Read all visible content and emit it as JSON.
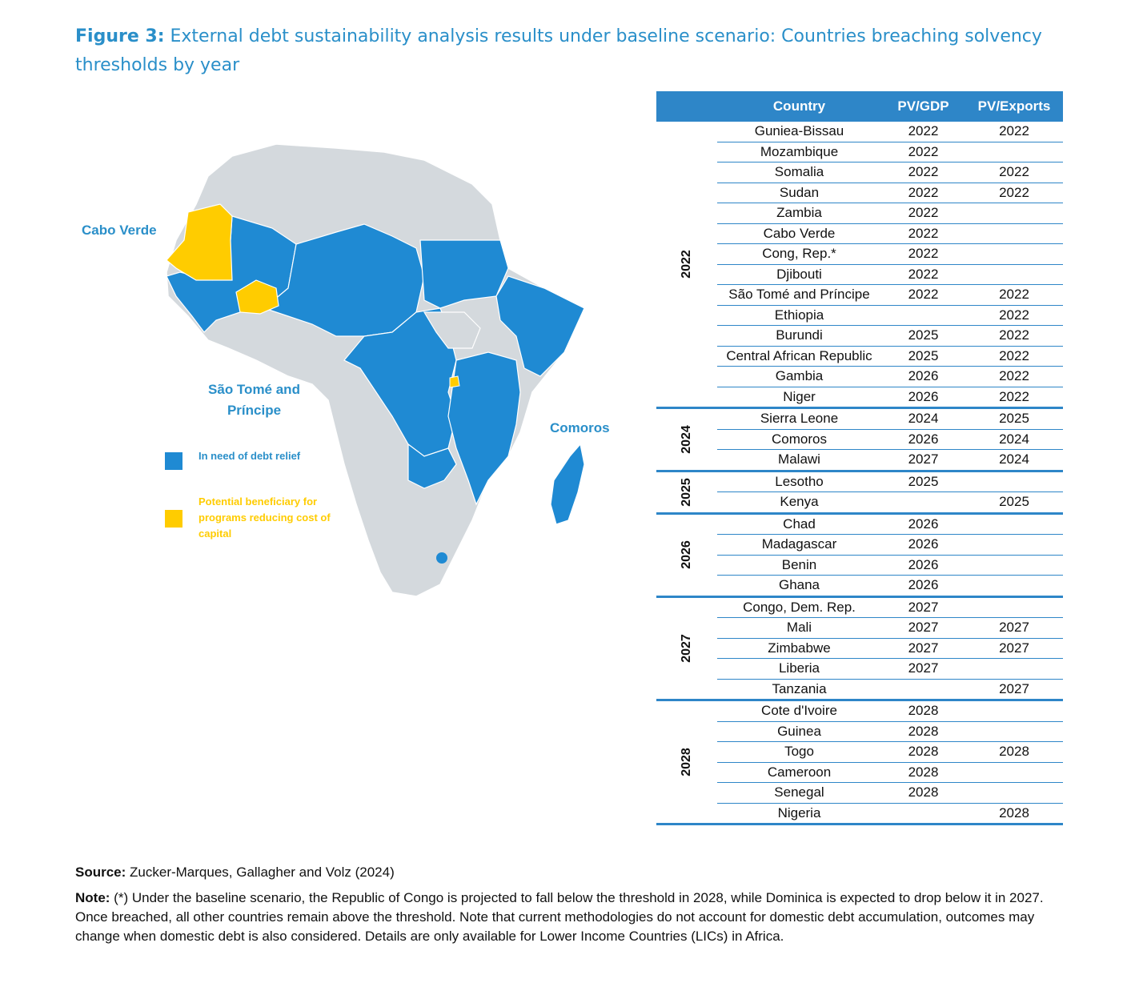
{
  "figure": {
    "label": "Figure 3:",
    "title": " External debt sustainability analysis results under baseline scenario: Countries breaching solvency thresholds by year"
  },
  "map": {
    "labels": {
      "cabo_verde": "Cabo Verde",
      "sao_tome_line1": "São Tomé and",
      "sao_tome_line2": "Príncipe",
      "comoros": "Comoros"
    },
    "legend": {
      "debt_relief": "In need of debt relief",
      "beneficiary": "Potential beneficiary for programs reducing cost of capital"
    },
    "colors": {
      "debt_relief": "#1f8ad3",
      "beneficiary": "#ffcc00",
      "other": "#d4d9dd"
    }
  },
  "table": {
    "headers": {
      "country": "Country",
      "pv_gdp": "PV/GDP",
      "pv_exports": "PV/Exports"
    },
    "groups": [
      {
        "year": "2022",
        "rows": [
          {
            "country": "Guniea-Bissau",
            "pv_gdp": "2022",
            "pv_exports": "2022"
          },
          {
            "country": "Mozambique",
            "pv_gdp": "2022",
            "pv_exports": ""
          },
          {
            "country": "Somalia",
            "pv_gdp": "2022",
            "pv_exports": "2022"
          },
          {
            "country": "Sudan",
            "pv_gdp": "2022",
            "pv_exports": "2022"
          },
          {
            "country": "Zambia",
            "pv_gdp": "2022",
            "pv_exports": ""
          },
          {
            "country": "Cabo Verde",
            "pv_gdp": "2022",
            "pv_exports": ""
          },
          {
            "country": "Cong, Rep.*",
            "pv_gdp": "2022",
            "pv_exports": ""
          },
          {
            "country": "Djibouti",
            "pv_gdp": "2022",
            "pv_exports": ""
          },
          {
            "country": "São Tomé and Príncipe",
            "pv_gdp": "2022",
            "pv_exports": "2022"
          },
          {
            "country": "Ethiopia",
            "pv_gdp": "",
            "pv_exports": "2022"
          },
          {
            "country": "Burundi",
            "pv_gdp": "2025",
            "pv_exports": "2022"
          },
          {
            "country": "Central African Republic",
            "pv_gdp": "2025",
            "pv_exports": "2022"
          },
          {
            "country": "Gambia",
            "pv_gdp": "2026",
            "pv_exports": "2022"
          },
          {
            "country": "Niger",
            "pv_gdp": "2026",
            "pv_exports": "2022"
          }
        ]
      },
      {
        "year": "2024",
        "rows": [
          {
            "country": "Sierra Leone",
            "pv_gdp": "2024",
            "pv_exports": "2025"
          },
          {
            "country": "Comoros",
            "pv_gdp": "2026",
            "pv_exports": "2024"
          },
          {
            "country": "Malawi",
            "pv_gdp": "2027",
            "pv_exports": "2024"
          }
        ]
      },
      {
        "year": "2025",
        "rows": [
          {
            "country": "Lesotho",
            "pv_gdp": "2025",
            "pv_exports": ""
          },
          {
            "country": "Kenya",
            "pv_gdp": "",
            "pv_exports": "2025"
          }
        ]
      },
      {
        "year": "2026",
        "rows": [
          {
            "country": "Chad",
            "pv_gdp": "2026",
            "pv_exports": ""
          },
          {
            "country": "Madagascar",
            "pv_gdp": "2026",
            "pv_exports": ""
          },
          {
            "country": "Benin",
            "pv_gdp": "2026",
            "pv_exports": ""
          },
          {
            "country": "Ghana",
            "pv_gdp": "2026",
            "pv_exports": ""
          }
        ]
      },
      {
        "year": "2027",
        "rows": [
          {
            "country": "Congo, Dem. Rep.",
            "pv_gdp": "2027",
            "pv_exports": ""
          },
          {
            "country": "Mali",
            "pv_gdp": "2027",
            "pv_exports": "2027"
          },
          {
            "country": "Zimbabwe",
            "pv_gdp": "2027",
            "pv_exports": "2027"
          },
          {
            "country": "Liberia",
            "pv_gdp": "2027",
            "pv_exports": ""
          },
          {
            "country": "Tanzania",
            "pv_gdp": "",
            "pv_exports": "2027"
          }
        ]
      },
      {
        "year": "2028",
        "rows": [
          {
            "country": "Cote d'Ivoire",
            "pv_gdp": "2028",
            "pv_exports": ""
          },
          {
            "country": "Guinea",
            "pv_gdp": "2028",
            "pv_exports": ""
          },
          {
            "country": "Togo",
            "pv_gdp": "2028",
            "pv_exports": "2028"
          },
          {
            "country": "Cameroon",
            "pv_gdp": "2028",
            "pv_exports": ""
          },
          {
            "country": "Senegal",
            "pv_gdp": "2028",
            "pv_exports": ""
          },
          {
            "country": "Nigeria",
            "pv_gdp": "",
            "pv_exports": "2028"
          }
        ]
      }
    ]
  },
  "footer": {
    "source_label": "Source:",
    "source_text": " Zucker-Marques, Gallagher and Volz (2024)",
    "note_label": "Note:",
    "note_text": " (*) Under the baseline scenario, the Republic of Congo is projected to fall below the threshold in 2028, while Dominica is expected to drop below it in 2027. Once breached, all other countries remain above the threshold. Note that current methodologies do not account for domestic debt accumulation, outcomes may change when domestic debt is also considered. Details are only available for Lower Income Countries (LICs) in Africa."
  }
}
